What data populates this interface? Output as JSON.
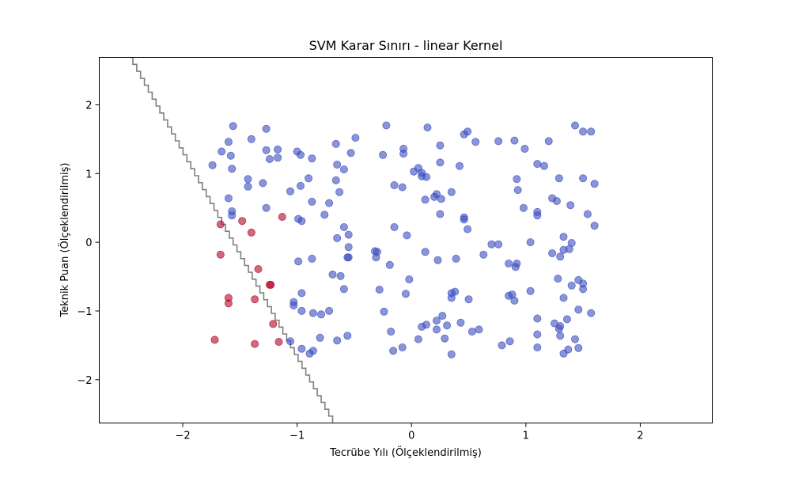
{
  "chart_data": {
    "type": "scatter",
    "title": "SVM Karar Sınırı - linear Kernel",
    "xlabel": "Tecrübe Yılı (Ölçeklendirilmiş)",
    "ylabel": "Teknik Puan (Ölçeklendirilmiş)",
    "xlim": [
      -2.73,
      2.63
    ],
    "ylim": [
      -2.63,
      2.69
    ],
    "x_ticks": [
      -2,
      -1,
      0,
      1,
      2
    ],
    "y_ticks": [
      -2,
      -1,
      0,
      1,
      2
    ],
    "x_tick_labels": [
      "−2",
      "−1",
      "0",
      "1",
      "2"
    ],
    "y_tick_labels": [
      "−2",
      "−1",
      "0",
      "1",
      "2"
    ],
    "grid": false,
    "colors": {
      "class_blue": "#3b4cc0",
      "class_red": "#b40426",
      "boundary": "#808080"
    },
    "decision_boundary": {
      "style": "staircase",
      "points": [
        [
          -2.47,
          2.69
        ],
        [
          -1.66,
          0.26
        ],
        [
          -0.69,
          -2.63
        ]
      ]
    },
    "series": [
      {
        "color": "#3b4cc0",
        "points": [
          [
            -1.74,
            1.12
          ],
          [
            -1.66,
            1.32
          ],
          [
            -1.6,
            1.46
          ],
          [
            -1.56,
            1.69
          ],
          [
            -1.58,
            1.26
          ],
          [
            -1.57,
            1.07
          ],
          [
            -1.6,
            0.64
          ],
          [
            -1.57,
            0.45
          ],
          [
            -1.57,
            0.39
          ],
          [
            -1.43,
            0.92
          ],
          [
            -1.43,
            0.81
          ],
          [
            -1.4,
            1.5
          ],
          [
            -1.3,
            0.86
          ],
          [
            -1.27,
            1.65
          ],
          [
            -1.27,
            1.34
          ],
          [
            -1.24,
            1.21
          ],
          [
            -1.17,
            1.35
          ],
          [
            -1.17,
            1.23
          ],
          [
            -1.27,
            0.5
          ],
          [
            -1.06,
            0.74
          ],
          [
            -1.0,
            1.32
          ],
          [
            -0.97,
            1.27
          ],
          [
            -0.97,
            0.82
          ],
          [
            -0.9,
            0.93
          ],
          [
            -0.87,
            1.22
          ],
          [
            -0.87,
            0.59
          ],
          [
            -0.99,
            0.34
          ],
          [
            -0.96,
            0.31
          ],
          [
            -0.76,
            0.4
          ],
          [
            -0.72,
            0.57
          ],
          [
            -0.66,
            1.43
          ],
          [
            -0.65,
            1.13
          ],
          [
            -0.66,
            0.9
          ],
          [
            -0.63,
            0.73
          ],
          [
            -0.59,
            1.06
          ],
          [
            -0.53,
            1.3
          ],
          [
            -0.49,
            1.52
          ],
          [
            -0.99,
            -0.28
          ],
          [
            -0.87,
            -0.24
          ],
          [
            -0.59,
            0.22
          ],
          [
            -0.55,
            0.11
          ],
          [
            -0.65,
            0.06
          ],
          [
            -0.55,
            -0.07
          ],
          [
            -0.56,
            -0.22
          ],
          [
            -0.55,
            -0.22
          ],
          [
            -0.69,
            -0.47
          ],
          [
            -0.62,
            -0.49
          ],
          [
            -0.59,
            -0.68
          ],
          [
            -0.96,
            -0.74
          ],
          [
            -1.03,
            -0.87
          ],
          [
            -1.03,
            -0.92
          ],
          [
            -0.96,
            -1.0
          ],
          [
            -0.86,
            -1.03
          ],
          [
            -0.79,
            -1.05
          ],
          [
            -0.72,
            -1.0
          ],
          [
            -1.06,
            -1.44
          ],
          [
            -0.96,
            -1.55
          ],
          [
            -0.89,
            -1.62
          ],
          [
            -0.86,
            -1.58
          ],
          [
            -0.8,
            -1.39
          ],
          [
            -0.65,
            -1.43
          ],
          [
            -0.56,
            -1.36
          ],
          [
            -0.22,
            1.7
          ],
          [
            -0.25,
            1.27
          ],
          [
            -0.07,
            1.36
          ],
          [
            -0.07,
            1.29
          ],
          [
            -0.15,
            0.83
          ],
          [
            -0.08,
            0.8
          ],
          [
            0.02,
            1.03
          ],
          [
            0.06,
            1.08
          ],
          [
            0.09,
            1.01
          ],
          [
            0.09,
            0.96
          ],
          [
            0.13,
            0.95
          ],
          [
            0.14,
            1.67
          ],
          [
            0.25,
            1.41
          ],
          [
            0.25,
            1.16
          ],
          [
            0.12,
            0.62
          ],
          [
            0.2,
            0.66
          ],
          [
            0.22,
            0.7
          ],
          [
            0.26,
            0.63
          ],
          [
            0.25,
            0.41
          ],
          [
            0.35,
            0.73
          ],
          [
            0.42,
            1.11
          ],
          [
            0.46,
            1.57
          ],
          [
            0.49,
            1.61
          ],
          [
            0.56,
            1.46
          ],
          [
            0.46,
            0.36
          ],
          [
            0.46,
            0.33
          ],
          [
            0.49,
            0.19
          ],
          [
            0.76,
            1.47
          ],
          [
            0.9,
            1.48
          ],
          [
            0.99,
            1.36
          ],
          [
            1.1,
            1.14
          ],
          [
            1.16,
            1.11
          ],
          [
            1.2,
            1.47
          ],
          [
            0.92,
            0.92
          ],
          [
            0.93,
            0.76
          ],
          [
            0.98,
            0.5
          ],
          [
            1.1,
            0.44
          ],
          [
            1.1,
            0.39
          ],
          [
            1.23,
            0.64
          ],
          [
            1.27,
            0.6
          ],
          [
            1.29,
            0.93
          ],
          [
            1.39,
            0.54
          ],
          [
            1.43,
            1.7
          ],
          [
            1.5,
            1.61
          ],
          [
            1.57,
            1.61
          ],
          [
            1.5,
            0.93
          ],
          [
            1.54,
            0.41
          ],
          [
            1.6,
            0.85
          ],
          [
            1.6,
            0.24
          ],
          [
            -0.15,
            0.22
          ],
          [
            -0.04,
            0.1
          ],
          [
            -0.32,
            -0.13
          ],
          [
            -0.3,
            -0.14
          ],
          [
            -0.31,
            -0.22
          ],
          [
            -0.19,
            -0.33
          ],
          [
            -0.28,
            -0.69
          ],
          [
            -0.02,
            -0.54
          ],
          [
            -0.05,
            -0.75
          ],
          [
            0.12,
            -0.14
          ],
          [
            0.23,
            -0.26
          ],
          [
            0.39,
            -0.24
          ],
          [
            0.35,
            -0.74
          ],
          [
            0.38,
            -0.72
          ],
          [
            0.35,
            -0.81
          ],
          [
            0.5,
            -0.83
          ],
          [
            0.63,
            -0.18
          ],
          [
            0.7,
            -0.03
          ],
          [
            0.76,
            -0.03
          ],
          [
            0.85,
            -0.31
          ],
          [
            0.92,
            -0.31
          ],
          [
            0.91,
            -0.36
          ],
          [
            1.04,
            0.0
          ],
          [
            0.85,
            -0.78
          ],
          [
            0.88,
            -0.76
          ],
          [
            0.9,
            -0.85
          ],
          [
            1.04,
            -0.71
          ],
          [
            -0.24,
            -1.01
          ],
          [
            -0.18,
            -1.3
          ],
          [
            -0.16,
            -1.58
          ],
          [
            -0.08,
            -1.53
          ],
          [
            0.06,
            -1.41
          ],
          [
            0.09,
            -1.23
          ],
          [
            0.13,
            -1.2
          ],
          [
            0.22,
            -1.14
          ],
          [
            0.22,
            -1.27
          ],
          [
            0.27,
            -1.07
          ],
          [
            0.31,
            -1.21
          ],
          [
            0.29,
            -1.4
          ],
          [
            0.35,
            -1.63
          ],
          [
            0.43,
            -1.17
          ],
          [
            0.53,
            -1.3
          ],
          [
            0.59,
            -1.27
          ],
          [
            0.79,
            -1.5
          ],
          [
            0.86,
            -1.44
          ],
          [
            1.1,
            -1.11
          ],
          [
            1.1,
            -1.34
          ],
          [
            1.1,
            -1.53
          ],
          [
            1.28,
            -0.53
          ],
          [
            1.3,
            -0.21
          ],
          [
            1.33,
            -0.11
          ],
          [
            1.38,
            -0.1
          ],
          [
            1.4,
            -0.01
          ],
          [
            1.33,
            0.08
          ],
          [
            1.23,
            -0.16
          ],
          [
            1.4,
            -0.63
          ],
          [
            1.46,
            -0.55
          ],
          [
            1.5,
            -0.6
          ],
          [
            1.5,
            -0.68
          ],
          [
            1.33,
            -0.81
          ],
          [
            1.46,
            -0.98
          ],
          [
            1.57,
            -1.03
          ],
          [
            1.25,
            -1.18
          ],
          [
            1.3,
            -1.22
          ],
          [
            1.29,
            -1.26
          ],
          [
            1.3,
            -1.36
          ],
          [
            1.36,
            -1.12
          ],
          [
            1.43,
            -1.41
          ],
          [
            1.37,
            -1.56
          ],
          [
            1.33,
            -1.62
          ],
          [
            1.46,
            -1.54
          ]
        ]
      },
      {
        "color": "#b40426",
        "points": [
          [
            -1.67,
            0.26
          ],
          [
            -1.48,
            0.31
          ],
          [
            -1.4,
            0.14
          ],
          [
            -1.13,
            0.37
          ],
          [
            -1.67,
            -0.18
          ],
          [
            -1.34,
            -0.39
          ],
          [
            -1.24,
            -0.62
          ],
          [
            -1.23,
            -0.62
          ],
          [
            -1.6,
            -0.81
          ],
          [
            -1.6,
            -0.89
          ],
          [
            -1.37,
            -0.83
          ],
          [
            -1.21,
            -1.19
          ],
          [
            -1.72,
            -1.42
          ],
          [
            -1.37,
            -1.48
          ],
          [
            -1.16,
            -1.45
          ]
        ]
      }
    ]
  }
}
